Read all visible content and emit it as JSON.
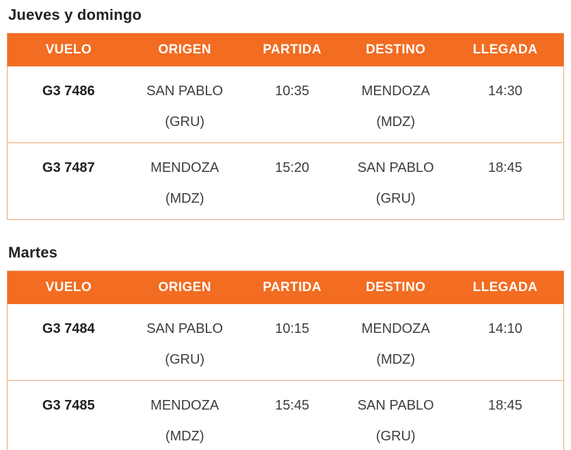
{
  "colors": {
    "header_bg": "#f26c21",
    "table_border": "#eca575",
    "header_text": "#ffffff",
    "title_text": "#222222",
    "cell_text": "#3d3d3d"
  },
  "columns": [
    "VUELO",
    "ORIGEN",
    "PARTIDA",
    "DESTINO",
    "LLEGADA"
  ],
  "sections": [
    {
      "title": "Jueves y domingo",
      "rows": [
        {
          "vuelo": "G3 7486",
          "origen": "SAN PABLO",
          "origen_code": "(GRU)",
          "partida": "10:35",
          "destino": "MENDOZA",
          "destino_code": "(MDZ)",
          "llegada": "14:30"
        },
        {
          "vuelo": "G3 7487",
          "origen": "MENDOZA",
          "origen_code": "(MDZ)",
          "partida": "15:20",
          "destino": "SAN PABLO",
          "destino_code": "(GRU)",
          "llegada": "18:45"
        }
      ]
    },
    {
      "title": "Martes",
      "rows": [
        {
          "vuelo": "G3 7484",
          "origen": "SAN PABLO",
          "origen_code": "(GRU)",
          "partida": "10:15",
          "destino": "MENDOZA",
          "destino_code": "(MDZ)",
          "llegada": "14:10"
        },
        {
          "vuelo": "G3 7485",
          "origen": "MENDOZA",
          "origen_code": "(MDZ)",
          "partida": "15:45",
          "destino": "SAN PABLO",
          "destino_code": "(GRU)",
          "llegada": "18:45"
        }
      ]
    }
  ]
}
